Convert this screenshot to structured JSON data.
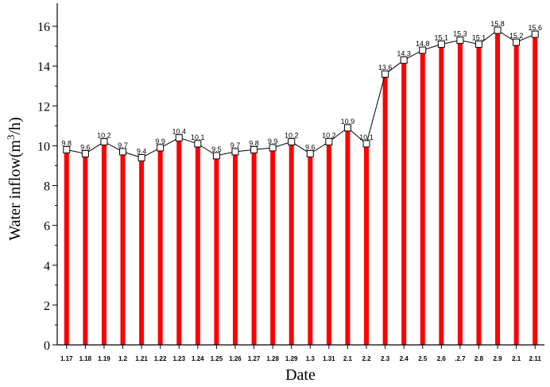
{
  "chart_data": {
    "type": "bar",
    "categories": [
      "1.17",
      "1.18",
      "1.19",
      "1.2",
      "1.21",
      "1.22",
      "1.23",
      "1.24",
      "1.25",
      "1.26",
      "1.27",
      "1.28",
      "1.29",
      "1.3",
      "1.31",
      "2.1",
      "2.2",
      "2.3",
      "2.4",
      "2.5",
      "2.6",
      ".2.7",
      "2.8",
      "2.9",
      "2.1",
      "2.11"
    ],
    "values": [
      9.8,
      9.6,
      10.2,
      9.7,
      9.4,
      9.9,
      10.4,
      10.1,
      9.5,
      9.7,
      9.8,
      9.9,
      10.2,
      9.6,
      10.2,
      10.9,
      10.1,
      13.6,
      14.3,
      14.8,
      15.1,
      15.3,
      15.1,
      15.8,
      15.2,
      15.6
    ],
    "value_labels": [
      "9.8",
      "9.6",
      "10.2",
      "9.7",
      "9.4",
      "9.9",
      "10.4",
      "10.1",
      "9.5",
      "9.7",
      "9.8",
      "9.9",
      "10.2",
      "9.6",
      "10.2",
      "10.9",
      "10.1",
      "13.6",
      "14.3",
      "14.8",
      "15.1",
      "15.3",
      "15.1",
      "15.8",
      "15.2",
      "15.6"
    ],
    "overlay": "line-with-square-markers",
    "xlabel": "Date",
    "ylabel_prefix": "Water inflow(m",
    "ylabel_sup": "3",
    "ylabel_suffix": "/h)",
    "ylim": [
      0,
      17
    ],
    "yticks": [
      0,
      2,
      4,
      6,
      8,
      10,
      12,
      14,
      16
    ],
    "ytick_labels": [
      "0",
      "2",
      "4",
      "6",
      "8",
      "10",
      "12",
      "14",
      "16"
    ],
    "grid": false,
    "legend": "none",
    "colors": {
      "bar": "#ff0000",
      "line": "#000000",
      "marker_fill": "#ffffff",
      "marker_stroke": "#000000"
    }
  }
}
